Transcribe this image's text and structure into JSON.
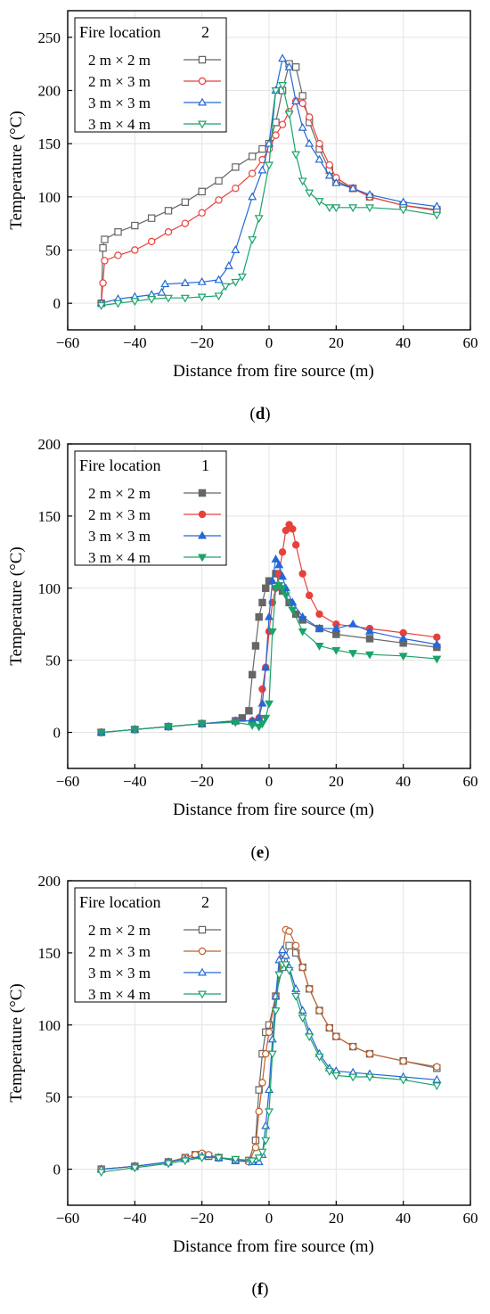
{
  "chart_data": [
    {
      "type": "line",
      "panel_label": "d",
      "xlabel": "Distance from fire source (m)",
      "ylabel": "Temperature (°C)",
      "xlim": [
        -60,
        60
      ],
      "ylim": [
        -25,
        275
      ],
      "xticks": [
        -60,
        -40,
        -20,
        0,
        20,
        40,
        60
      ],
      "yticks": [
        0,
        50,
        100,
        150,
        200,
        250
      ],
      "grid": true,
      "legend": {
        "position": "top-left",
        "header": "Fire location",
        "header_value": "2"
      },
      "marker_fill": "open",
      "series": [
        {
          "name": "2 m × 2 m",
          "color": "#666666",
          "marker": "square",
          "x": [
            -50,
            -49.5,
            -49,
            -45,
            -40,
            -35,
            -30,
            -25,
            -20,
            -15,
            -10,
            -5,
            -2,
            0,
            2,
            4,
            6,
            8,
            10,
            12,
            15,
            18,
            20,
            25,
            30,
            40,
            50
          ],
          "y": [
            0,
            52,
            60,
            67,
            73,
            80,
            87,
            95,
            105,
            115,
            128,
            138,
            145,
            150,
            170,
            200,
            225,
            222,
            195,
            170,
            145,
            125,
            115,
            108,
            100,
            92,
            88
          ]
        },
        {
          "name": "2 m × 3 m",
          "color": "#e8413c",
          "marker": "circle",
          "x": [
            -50,
            -49.5,
            -49,
            -45,
            -40,
            -35,
            -30,
            -25,
            -20,
            -15,
            -10,
            -5,
            -2,
            0,
            2,
            4,
            6,
            8,
            10,
            12,
            15,
            18,
            20,
            25,
            30,
            40,
            50
          ],
          "y": [
            0,
            19,
            40,
            45,
            50,
            58,
            67,
            75,
            85,
            97,
            108,
            122,
            135,
            145,
            158,
            168,
            180,
            190,
            188,
            175,
            150,
            130,
            118,
            108,
            100,
            92,
            87
          ]
        },
        {
          "name": "3 m × 3 m",
          "color": "#2468d6",
          "marker": "triangle-up",
          "x": [
            -50,
            -45,
            -40,
            -35,
            -32,
            -31,
            -25,
            -20,
            -15,
            -12,
            -10,
            -5,
            -2,
            0,
            2,
            4,
            6,
            8,
            10,
            12,
            15,
            18,
            20,
            25,
            30,
            40,
            50
          ],
          "y": [
            0,
            4,
            6,
            8,
            10,
            18,
            19,
            20,
            22,
            35,
            50,
            100,
            125,
            150,
            200,
            230,
            222,
            190,
            165,
            150,
            135,
            120,
            113,
            108,
            102,
            95,
            91
          ]
        },
        {
          "name": "3 m × 4 m",
          "color": "#1aa36a",
          "marker": "triangle-down",
          "x": [
            -50,
            -45,
            -40,
            -35,
            -30,
            -25,
            -20,
            -15,
            -13,
            -10,
            -8,
            -5,
            -3,
            0,
            2,
            4,
            6,
            8,
            10,
            12,
            15,
            18,
            20,
            25,
            30,
            40,
            50
          ],
          "y": [
            -2,
            0,
            2,
            4,
            5,
            5,
            6,
            7,
            16,
            20,
            25,
            60,
            80,
            130,
            200,
            205,
            178,
            140,
            115,
            104,
            96,
            90,
            90,
            90,
            90,
            88,
            83
          ]
        }
      ]
    },
    {
      "type": "line",
      "panel_label": "e",
      "xlabel": "Distance from fire source (m)",
      "ylabel": "Temperature (°C)",
      "xlim": [
        -60,
        60
      ],
      "ylim": [
        -25,
        200
      ],
      "xticks": [
        -60,
        -40,
        -20,
        0,
        20,
        40,
        60
      ],
      "yticks": [
        0,
        50,
        100,
        150,
        200
      ],
      "grid": true,
      "legend": {
        "position": "top-left",
        "header": "Fire location",
        "header_value": "1"
      },
      "marker_fill": "filled",
      "series": [
        {
          "name": "2 m × 2 m",
          "color": "#666666",
          "marker": "square",
          "x": [
            -50,
            -40,
            -30,
            -20,
            -10,
            -8,
            -6,
            -5,
            -4,
            -3,
            -2,
            -1,
            0,
            2,
            4,
            6,
            8,
            10,
            15,
            20,
            30,
            40,
            50
          ],
          "y": [
            0,
            2,
            4,
            6,
            8,
            10,
            15,
            40,
            60,
            80,
            90,
            100,
            105,
            110,
            98,
            90,
            82,
            78,
            72,
            68,
            65,
            62,
            59
          ]
        },
        {
          "name": "2 m × 3 m",
          "color": "#e8413c",
          "marker": "circle",
          "x": [
            -50,
            -40,
            -30,
            -20,
            -10,
            -5,
            -3,
            -2,
            -1,
            0,
            1,
            2,
            3,
            4,
            5,
            6,
            7,
            8,
            10,
            12,
            15,
            20,
            30,
            40,
            50
          ],
          "y": [
            0,
            2,
            4,
            6,
            8,
            8,
            10,
            30,
            45,
            70,
            90,
            100,
            110,
            125,
            140,
            144,
            141,
            130,
            110,
            95,
            82,
            75,
            72,
            69,
            66
          ]
        },
        {
          "name": "3 m × 3 m",
          "color": "#2468d6",
          "marker": "triangle-up",
          "x": [
            -50,
            -40,
            -30,
            -20,
            -10,
            -5,
            -3,
            -2,
            -1,
            0,
            1,
            2,
            3,
            4,
            5,
            7,
            10,
            15,
            20,
            25,
            30,
            40,
            50
          ],
          "y": [
            0,
            2,
            4,
            6,
            8,
            8,
            10,
            20,
            45,
            80,
            105,
            120,
            116,
            108,
            100,
            90,
            80,
            72,
            72,
            75,
            70,
            65,
            61
          ]
        },
        {
          "name": "3 m × 4 m",
          "color": "#1aa36a",
          "marker": "triangle-down",
          "x": [
            -50,
            -40,
            -30,
            -20,
            -10,
            -5,
            -3,
            -2,
            -1,
            0,
            1,
            2,
            3,
            4,
            5,
            7,
            10,
            15,
            20,
            25,
            30,
            40,
            50
          ],
          "y": [
            0,
            2,
            4,
            6,
            7,
            5,
            4,
            6,
            10,
            20,
            70,
            100,
            102,
            100,
            95,
            85,
            70,
            60,
            57,
            55,
            54,
            53,
            51
          ]
        }
      ]
    },
    {
      "type": "line",
      "panel_label": "f",
      "xlabel": "Distance from fire source (m)",
      "ylabel": "Temperature (°C)",
      "xlim": [
        -60,
        60
      ],
      "ylim": [
        -25,
        200
      ],
      "xticks": [
        -60,
        -40,
        -20,
        0,
        20,
        40,
        60
      ],
      "yticks": [
        0,
        50,
        100,
        150,
        200
      ],
      "grid": true,
      "legend": {
        "position": "top-left",
        "header": "Fire location",
        "header_value": "2"
      },
      "marker_fill": "open",
      "series": [
        {
          "name": "2 m × 2 m",
          "color": "#666666",
          "marker": "square",
          "x": [
            -50,
            -40,
            -30,
            -25,
            -22,
            -20,
            -18,
            -15,
            -10,
            -6,
            -4,
            -3,
            -2,
            -1,
            0,
            2,
            4,
            6,
            8,
            10,
            12,
            15,
            18,
            20,
            25,
            30,
            40,
            50
          ],
          "y": [
            0,
            2,
            5,
            8,
            10,
            10,
            9,
            8,
            6,
            6,
            20,
            55,
            80,
            95,
            100,
            120,
            140,
            155,
            150,
            140,
            125,
            110,
            98,
            92,
            85,
            80,
            75,
            70
          ]
        },
        {
          "name": "2 m × 3 m",
          "color": "#c0622f",
          "marker": "circle",
          "x": [
            -50,
            -40,
            -30,
            -25,
            -22,
            -20,
            -18,
            -15,
            -10,
            -6,
            -4,
            -3,
            -2,
            -1,
            0,
            2,
            4,
            5,
            6,
            8,
            10,
            12,
            15,
            18,
            20,
            25,
            30,
            40,
            50
          ],
          "y": [
            0,
            2,
            5,
            8,
            10,
            11,
            10,
            8,
            6,
            5,
            15,
            40,
            60,
            80,
            95,
            120,
            150,
            166,
            165,
            155,
            140,
            125,
            110,
            98,
            92,
            85,
            80,
            75,
            71
          ]
        },
        {
          "name": "3 m × 3 m",
          "color": "#2468d6",
          "marker": "triangle-up",
          "x": [
            -50,
            -40,
            -30,
            -25,
            -20,
            -15,
            -10,
            -5,
            -3,
            -2,
            -1,
            0,
            1,
            2,
            3,
            4,
            5,
            6,
            8,
            10,
            12,
            15,
            18,
            20,
            25,
            30,
            40,
            50
          ],
          "y": [
            0,
            2,
            5,
            7,
            9,
            8,
            6,
            5,
            5,
            10,
            30,
            55,
            90,
            120,
            145,
            152,
            148,
            140,
            125,
            110,
            95,
            80,
            70,
            68,
            67,
            66,
            64,
            62
          ]
        },
        {
          "name": "3 m × 4 m",
          "color": "#1aa36a",
          "marker": "triangle-down",
          "x": [
            -50,
            -40,
            -30,
            -25,
            -20,
            -15,
            -10,
            -5,
            -3,
            -2,
            -1,
            0,
            1,
            2,
            3,
            4,
            5,
            6,
            8,
            10,
            12,
            15,
            18,
            20,
            25,
            30,
            40,
            50
          ],
          "y": [
            -2,
            1,
            4,
            6,
            8,
            8,
            7,
            6,
            8,
            12,
            20,
            40,
            80,
            110,
            135,
            142,
            142,
            138,
            120,
            105,
            92,
            78,
            68,
            65,
            64,
            64,
            62,
            58
          ]
        }
      ]
    }
  ]
}
